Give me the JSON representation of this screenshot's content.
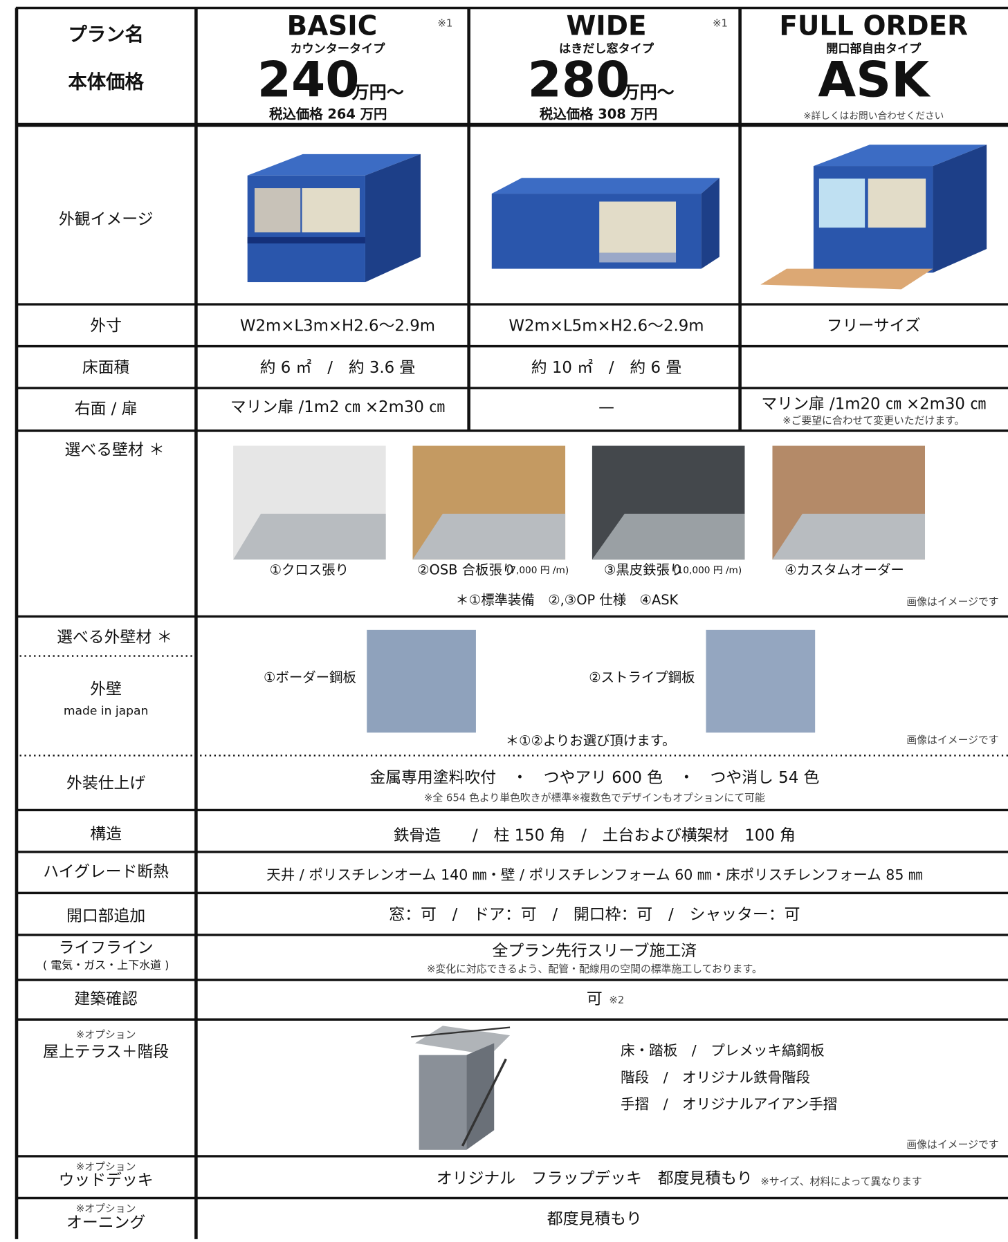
{
  "header": {
    "labels": [
      "プラン名",
      "本体価格"
    ],
    "plans": [
      {
        "name": "BASIC",
        "note": "※1",
        "type": "カウンタータイプ",
        "price": "240",
        "unit": "万円〜",
        "tax": "税込価格 264 万円"
      },
      {
        "name": "WIDE",
        "note": "※1",
        "type": "はきだし窓タイプ",
        "price": "280",
        "unit": "万円〜",
        "tax": "税込価格 308 万円"
      },
      {
        "name": "FULL ORDER",
        "type": "開口部自由タイプ",
        "price": "ASK",
        "tax": "※詳しくはお問い合わせください"
      }
    ]
  },
  "exterior": {
    "label": "外観イメージ"
  },
  "dimensions": {
    "label": "外寸",
    "cells": [
      "W2m×L3m×H2.6〜2.9m",
      "W2m×L5m×H2.6〜2.9m",
      "フリーサイズ"
    ]
  },
  "floor_area": {
    "label": "床面積",
    "cells": [
      "約 6 ㎡　/　約 3.6 畳",
      "約 10 ㎡　/　約 6 畳"
    ]
  },
  "door": {
    "label": "右面 / 扉",
    "cells": [
      "マリン扉 /1m2 ㎝ ×2m30 ㎝",
      "—",
      "マリン扉 /1m20 ㎝ ×2m30 ㎝"
    ],
    "note": "※ご要望に合わせて変更いただけます。"
  },
  "wall": {
    "label": "選べる壁材 ＊",
    "options": [
      {
        "name": "①クロス張り"
      },
      {
        "name": "②OSB 合板張り",
        "price": "(7,000 円 /m)"
      },
      {
        "name": "③黒皮鉄張り",
        "price": "(10,000 円 /m)"
      },
      {
        "name": "④カスタムオーダー"
      }
    ],
    "note": "＊①標準装備　②,③OP 仕様　④ASK",
    "image_note": "画像はイメージです"
  },
  "outer_wall": {
    "label": "選べる外壁材 ＊",
    "label2": "外壁",
    "sub": "made in japan",
    "options": [
      "①ボーダー鋼板",
      "②ストライプ鋼板"
    ],
    "note": "＊①②よりお選び頂けます。",
    "image_note": "画像はイメージです"
  },
  "finish": {
    "label": "外装仕上げ",
    "text": "金属専用塗料吹付　・　つやアリ 600 色　・　つや消し 54 色",
    "note": "※全 654 色より単色吹きが標準※複数色でデザインもオプションにて可能"
  },
  "structure": {
    "label": "構造",
    "text": "鉄骨造　　/　柱 150 角　/　土台および横架材　100 角"
  },
  "insulation": {
    "label": "ハイグレード断熱",
    "text": "天井 / ポリスチレンオーム 140 ㎜・壁 / ポリスチレンフォーム 60 ㎜・床ポリスチレンフォーム 85 ㎜"
  },
  "openings": {
    "label": "開口部追加",
    "text": "窓：可　/　ドア：可　/　開口枠：可　/　シャッター：可"
  },
  "lifeline": {
    "label": "ライフライン",
    "sub": "( 電気・ガス・上下水道 )",
    "text": "全プラン先行スリーブ施工済",
    "note": "※変化に対応できるよう、配管・配線用の空間の標準施工しております。"
  },
  "permit": {
    "label": "建築確認",
    "text": "可",
    "note": "※2"
  },
  "terrace": {
    "option": "※オプション",
    "label": "屋上テラス＋階段",
    "items": [
      "床・踏板　/　プレメッキ縞鋼板",
      "階段　/　オリジナル鉄骨階段",
      "手摺　/　オリジナルアイアン手摺"
    ],
    "image_note": "画像はイメージです"
  },
  "deck": {
    "option": "※オプション",
    "label": "ウッドデッキ",
    "text": "オリジナル　フラップデッキ　都度見積もり",
    "note": "※サイズ、材料によって異なります"
  },
  "awning": {
    "option": "※オプション",
    "label": "オーニング",
    "text": "都度見積もり"
  }
}
